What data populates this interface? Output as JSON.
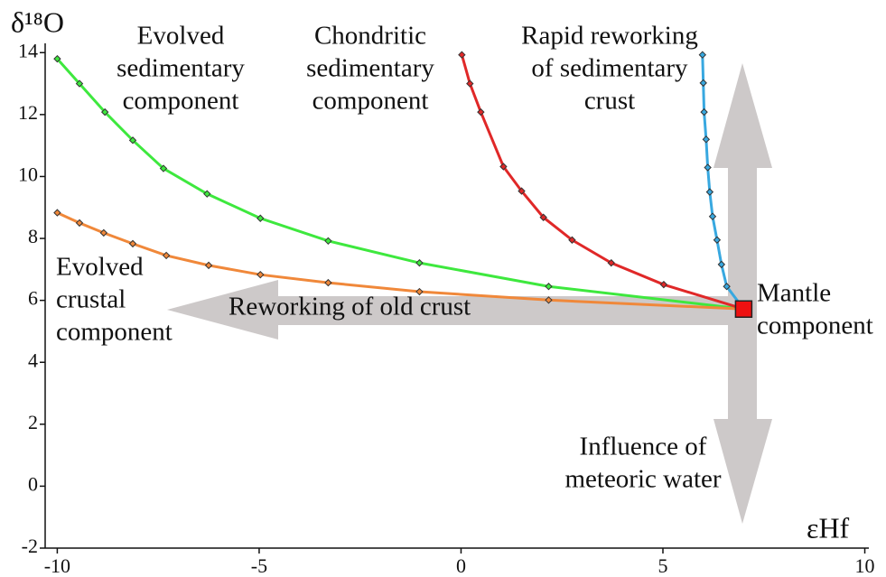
{
  "chart_data": {
    "type": "line",
    "x_label": "εHf",
    "y_label": "δ¹⁸O",
    "xlim": [
      -10.3,
      10.1
    ],
    "ylim": [
      -2,
      14.3
    ],
    "xticks": [
      -10,
      -5,
      0,
      5,
      10
    ],
    "yticks": [
      -2,
      0,
      2,
      4,
      6,
      8,
      10,
      12,
      14
    ],
    "series": [
      {
        "color": "#3ee83e",
        "x": [
          -10,
          -9.45,
          -8.82,
          -8.13,
          -7.37,
          -6.29,
          -4.97,
          -3.29,
          -1.03,
          2.17,
          7.0
        ],
        "values": [
          13.8,
          13.0,
          12.08,
          11.17,
          10.26,
          9.44,
          8.65,
          7.92,
          7.21,
          6.45,
          5.72
        ]
      },
      {
        "color": "#f0883a",
        "x": [
          -10,
          -9.45,
          -8.85,
          -8.13,
          -7.3,
          -6.25,
          -4.97,
          -3.29,
          -1.03,
          2.17,
          7.0
        ],
        "values": [
          8.83,
          8.5,
          8.18,
          7.83,
          7.45,
          7.13,
          6.83,
          6.57,
          6.28,
          6.01,
          5.72
        ]
      },
      {
        "color": "#e02828",
        "x": [
          0.02,
          0.22,
          0.49,
          1.05,
          1.5,
          2.04,
          2.75,
          3.72,
          5.02,
          7.0
        ],
        "values": [
          13.93,
          13.0,
          12.08,
          10.32,
          9.53,
          8.68,
          7.95,
          7.21,
          6.51,
          5.72
        ]
      },
      {
        "color": "#38a8e0",
        "x": [
          5.98,
          6.0,
          6.02,
          6.07,
          6.11,
          6.16,
          6.23,
          6.34,
          6.45,
          6.58,
          7.0
        ],
        "values": [
          13.93,
          13.02,
          12.08,
          11.2,
          10.29,
          9.5,
          8.71,
          7.95,
          7.16,
          6.45,
          5.72
        ]
      }
    ],
    "mantle": {
      "x": 7.0,
      "y": 5.72,
      "color": "#ee1111"
    },
    "annotations": {
      "evolved_sedimentary": [
        "Evolved",
        "sedimentary",
        "component"
      ],
      "chondritic": [
        "Chondritic",
        "sedimentary",
        "component"
      ],
      "rapid": [
        "Rapid reworking",
        "of sedimentary",
        "crust"
      ],
      "evolved_crustal": [
        "Evolved",
        "crustal",
        "component"
      ],
      "reworking": "Reworking of old crust",
      "mantle": [
        "Mantle",
        "component"
      ],
      "meteoric": [
        "Influence of",
        "meteoric water"
      ]
    }
  }
}
